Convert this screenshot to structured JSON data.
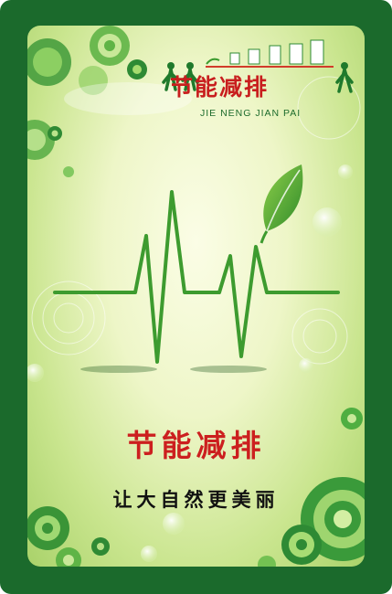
{
  "logo": {
    "title": "节能减排",
    "subtitle": "JIE NENG JIAN PAI"
  },
  "headline": "节能减排",
  "slogan": "让大自然更美丽",
  "colors": {
    "frame": "#1b6a2c",
    "headline": "#cc1f1f",
    "slogan": "#111111",
    "pulse_line": "#3d9b2f"
  }
}
